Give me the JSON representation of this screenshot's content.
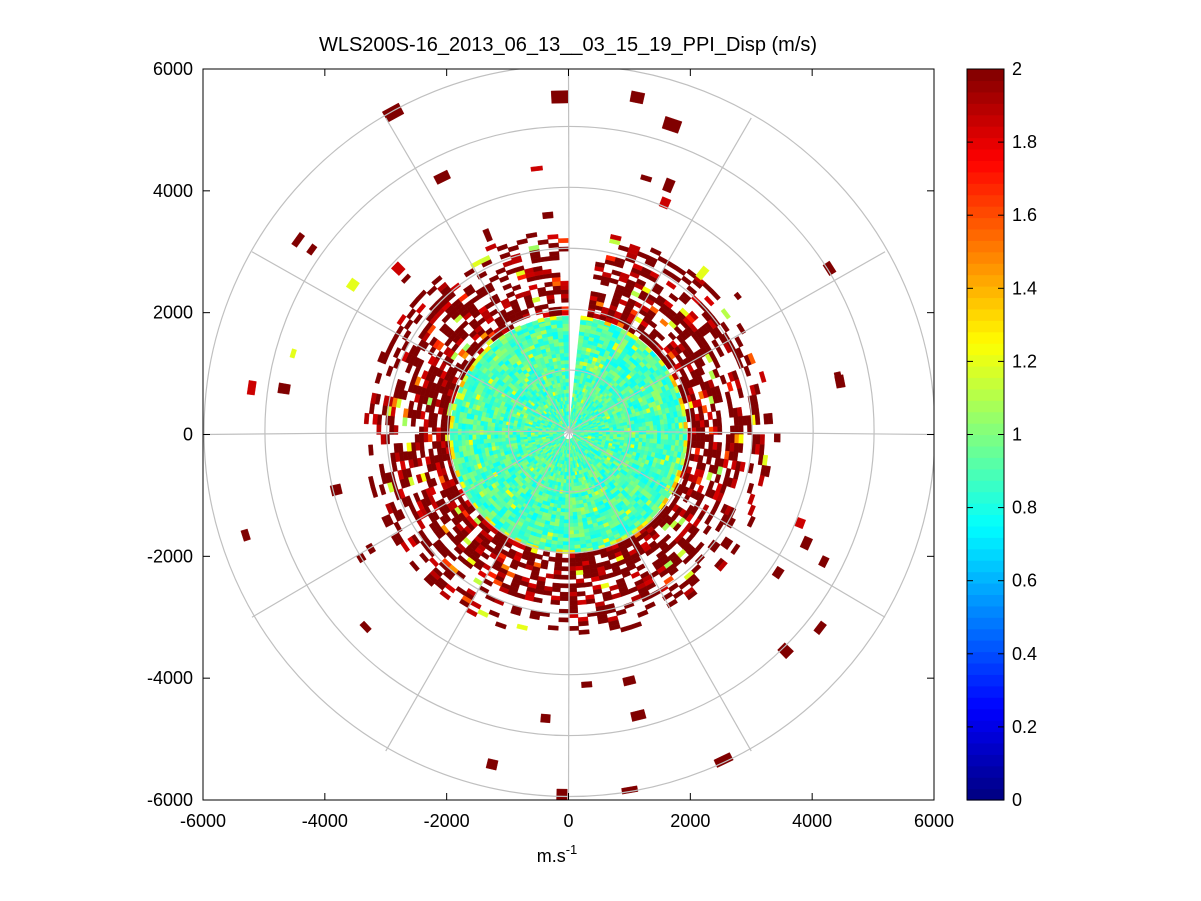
{
  "chart_data": {
    "type": "heatmap",
    "subtype": "polar-ppi",
    "title": "WLS200S-16_2013_06_13__03_15_19_PPI_Disp (m/s)",
    "xlabel": "m.s",
    "xlabel_superscript": "-1",
    "ylabel": "",
    "xlim": [
      -6000,
      6000
    ],
    "ylim": [
      -6000,
      6000
    ],
    "x_ticks": [
      -6000,
      -4000,
      -2000,
      0,
      2000,
      4000,
      6000
    ],
    "y_ticks": [
      -6000,
      -4000,
      -2000,
      0,
      2000,
      4000,
      6000
    ],
    "polar_grid": {
      "range_rings_m": [
        1000,
        2000,
        3000,
        4000,
        5000,
        6000
      ],
      "spoke_angles_deg": [
        0,
        30,
        60,
        90,
        120,
        150,
        180,
        210,
        240,
        270,
        300,
        330
      ]
    },
    "colorbar": {
      "colormap": "jet",
      "clim": [
        0,
        2
      ],
      "ticks": [
        0,
        0.2,
        0.4,
        0.6,
        0.8,
        1,
        1.2,
        1.4,
        1.6,
        1.8,
        2
      ],
      "tick_labels": [
        "0",
        "0.2",
        "0.4",
        "0.6",
        "0.8",
        "1",
        "1.2",
        "1.4",
        "1.6",
        "1.8",
        "2"
      ]
    },
    "field": {
      "description_values": "dense inner disc of values ~0.8-1.0 out to about 1900 m range; ring of mixed high values (1.8-2.0, saturated dark red) between ~1900 and 3300 m; sparse far returns at higher ranges",
      "inner_disc_radius_m": 1900,
      "inner_disc_value_range": [
        0.75,
        1.05
      ],
      "outer_band_range_m": [
        1900,
        3300
      ],
      "outer_band_typical_value": 2.0,
      "gap_sector_deg": [
        0,
        6
      ]
    }
  }
}
